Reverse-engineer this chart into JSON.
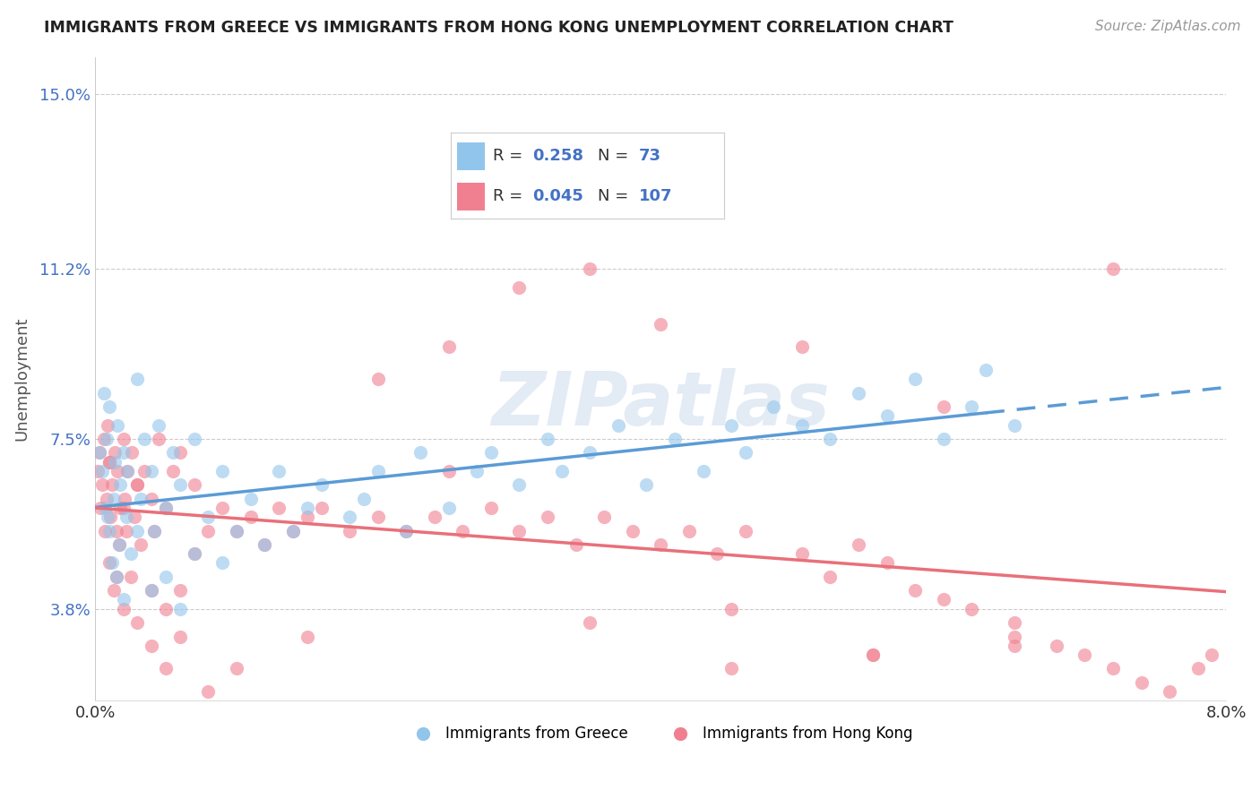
{
  "title": "IMMIGRANTS FROM GREECE VS IMMIGRANTS FROM HONG KONG UNEMPLOYMENT CORRELATION CHART",
  "source": "Source: ZipAtlas.com",
  "ylabel": "Unemployment",
  "xlim": [
    0.0,
    0.08
  ],
  "ylim": [
    0.018,
    0.158
  ],
  "yticks": [
    0.038,
    0.075,
    0.112,
    0.15
  ],
  "ytick_labels": [
    "3.8%",
    "7.5%",
    "11.2%",
    "15.0%"
  ],
  "xticks": [
    0.0,
    0.08
  ],
  "xtick_labels": [
    "0.0%",
    "8.0%"
  ],
  "legend_R1": "0.258",
  "legend_N1": "73",
  "legend_R2": "0.045",
  "legend_N2": "107",
  "color_greece": "#92C5EB",
  "color_hk": "#F08090",
  "color_blue_line": "#5B9BD5",
  "color_pink_line": "#E8707A",
  "color_blue_text": "#4472C4",
  "background_color": "#FFFFFF",
  "watermark": "ZIPatlas",
  "greece_scatter_x": [
    0.0003,
    0.0005,
    0.0006,
    0.0007,
    0.0008,
    0.0009,
    0.001,
    0.001,
    0.0012,
    0.0013,
    0.0014,
    0.0015,
    0.0016,
    0.0017,
    0.0018,
    0.002,
    0.002,
    0.0022,
    0.0023,
    0.0025,
    0.003,
    0.003,
    0.0032,
    0.0035,
    0.004,
    0.004,
    0.0042,
    0.0045,
    0.005,
    0.005,
    0.0055,
    0.006,
    0.006,
    0.007,
    0.007,
    0.008,
    0.009,
    0.009,
    0.01,
    0.011,
    0.012,
    0.013,
    0.014,
    0.015,
    0.016,
    0.018,
    0.019,
    0.02,
    0.022,
    0.023,
    0.025,
    0.027,
    0.028,
    0.03,
    0.032,
    0.033,
    0.035,
    0.037,
    0.039,
    0.041,
    0.043,
    0.045,
    0.046,
    0.048,
    0.05,
    0.052,
    0.054,
    0.056,
    0.058,
    0.06,
    0.062,
    0.063,
    0.065
  ],
  "greece_scatter_y": [
    0.072,
    0.068,
    0.085,
    0.06,
    0.075,
    0.058,
    0.055,
    0.082,
    0.048,
    0.062,
    0.07,
    0.045,
    0.078,
    0.052,
    0.065,
    0.04,
    0.072,
    0.058,
    0.068,
    0.05,
    0.088,
    0.055,
    0.062,
    0.075,
    0.042,
    0.068,
    0.055,
    0.078,
    0.045,
    0.06,
    0.072,
    0.038,
    0.065,
    0.05,
    0.075,
    0.058,
    0.048,
    0.068,
    0.055,
    0.062,
    0.052,
    0.068,
    0.055,
    0.06,
    0.065,
    0.058,
    0.062,
    0.068,
    0.055,
    0.072,
    0.06,
    0.068,
    0.072,
    0.065,
    0.075,
    0.068,
    0.072,
    0.078,
    0.065,
    0.075,
    0.068,
    0.078,
    0.072,
    0.082,
    0.078,
    0.075,
    0.085,
    0.08,
    0.088,
    0.075,
    0.082,
    0.09,
    0.078
  ],
  "hk_scatter_x": [
    0.0002,
    0.0003,
    0.0004,
    0.0005,
    0.0006,
    0.0007,
    0.0008,
    0.0009,
    0.001,
    0.001,
    0.0011,
    0.0012,
    0.0013,
    0.0014,
    0.0015,
    0.0016,
    0.0017,
    0.0018,
    0.002,
    0.002,
    0.0021,
    0.0022,
    0.0023,
    0.0025,
    0.0026,
    0.0028,
    0.003,
    0.003,
    0.0032,
    0.0035,
    0.004,
    0.004,
    0.0042,
    0.0045,
    0.005,
    0.005,
    0.0055,
    0.006,
    0.006,
    0.007,
    0.007,
    0.008,
    0.009,
    0.01,
    0.011,
    0.012,
    0.013,
    0.014,
    0.015,
    0.016,
    0.018,
    0.02,
    0.022,
    0.024,
    0.026,
    0.028,
    0.03,
    0.032,
    0.034,
    0.036,
    0.038,
    0.04,
    0.042,
    0.044,
    0.046,
    0.05,
    0.052,
    0.054,
    0.056,
    0.058,
    0.06,
    0.062,
    0.065,
    0.068,
    0.07,
    0.072,
    0.074,
    0.076,
    0.079,
    0.03,
    0.025,
    0.02,
    0.035,
    0.04,
    0.045,
    0.05,
    0.055,
    0.065,
    0.072,
    0.078,
    0.06,
    0.01,
    0.015,
    0.008,
    0.005,
    0.003,
    0.004,
    0.006,
    0.002,
    0.001,
    0.0015,
    0.025,
    0.035,
    0.045,
    0.055,
    0.065
  ],
  "hk_scatter_y": [
    0.068,
    0.072,
    0.06,
    0.065,
    0.075,
    0.055,
    0.062,
    0.078,
    0.048,
    0.07,
    0.058,
    0.065,
    0.042,
    0.072,
    0.055,
    0.068,
    0.052,
    0.06,
    0.038,
    0.075,
    0.062,
    0.055,
    0.068,
    0.045,
    0.072,
    0.058,
    0.035,
    0.065,
    0.052,
    0.068,
    0.042,
    0.062,
    0.055,
    0.075,
    0.038,
    0.06,
    0.068,
    0.032,
    0.072,
    0.05,
    0.065,
    0.055,
    0.06,
    0.055,
    0.058,
    0.052,
    0.06,
    0.055,
    0.058,
    0.06,
    0.055,
    0.058,
    0.055,
    0.058,
    0.055,
    0.06,
    0.055,
    0.058,
    0.052,
    0.058,
    0.055,
    0.052,
    0.055,
    0.05,
    0.055,
    0.05,
    0.045,
    0.052,
    0.048,
    0.042,
    0.04,
    0.038,
    0.035,
    0.03,
    0.028,
    0.025,
    0.022,
    0.02,
    0.028,
    0.108,
    0.095,
    0.088,
    0.112,
    0.1,
    0.038,
    0.095,
    0.028,
    0.032,
    0.112,
    0.025,
    0.082,
    0.025,
    0.032,
    0.02,
    0.025,
    0.065,
    0.03,
    0.042,
    0.06,
    0.07,
    0.045,
    0.068,
    0.035,
    0.025,
    0.028,
    0.03
  ]
}
